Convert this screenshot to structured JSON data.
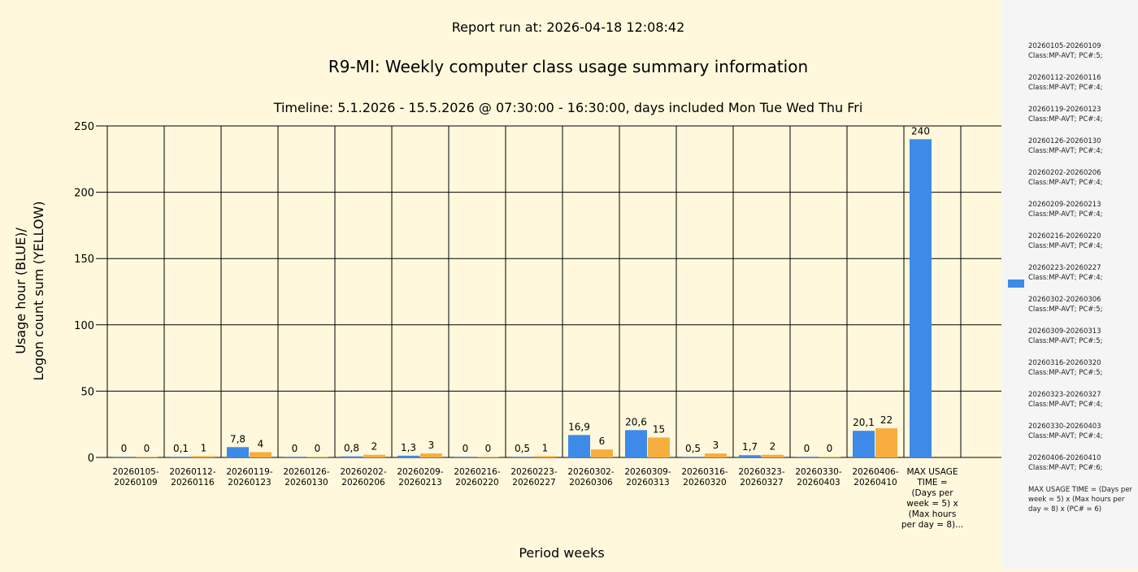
{
  "report_run": "Report run at: 2026-04-18 12:08:42",
  "colors": {
    "blue": "#3d8ae8",
    "yellow": "#f7ae3f",
    "background": "#fff8dc",
    "legend_bg": "#f5f5f5"
  },
  "chart_data": {
    "type": "bar",
    "title": "R9-MI: Weekly computer class usage summary information",
    "subtitle": "Timeline:  5.1.2026  - 15.5.2026  @  07:30:00 -  16:30:00, days included Mon Tue Wed Thu Fri",
    "xlabel": "Period weeks",
    "ylabel_line1": "Usage hour (BLUE)/",
    "ylabel_line2": "Logon count sum (YELLOW)",
    "ylim": [
      0,
      250
    ],
    "yticks": [
      0,
      50,
      100,
      150,
      200,
      250
    ],
    "grid": true,
    "categories": [
      [
        "20260105-",
        "20260109"
      ],
      [
        "20260112-",
        "20260116"
      ],
      [
        "20260119-",
        "20260123"
      ],
      [
        "20260126-",
        "20260130"
      ],
      [
        "20260202-",
        "20260206"
      ],
      [
        "20260209-",
        "20260213"
      ],
      [
        "20260216-",
        "20260220"
      ],
      [
        "20260223-",
        "20260227"
      ],
      [
        "20260302-",
        "20260306"
      ],
      [
        "20260309-",
        "20260313"
      ],
      [
        "20260316-",
        "20260320"
      ],
      [
        "20260323-",
        "20260327"
      ],
      [
        "20260330-",
        "20260403"
      ],
      [
        "20260406-",
        "20260410"
      ],
      [
        "MAX USAGE",
        "TIME =",
        "(Days per",
        "week = 5) x",
        "(Max hours",
        "per day = 8)..."
      ]
    ],
    "series": [
      {
        "color": "#3d8ae8",
        "values": [
          0,
          0.1,
          7.8,
          0,
          0.8,
          1.3,
          0,
          0.5,
          16.9,
          20.6,
          0.5,
          1.7,
          0,
          20.1,
          240
        ],
        "labels": [
          "0",
          "0,1",
          "7,8",
          "0",
          "0,8",
          "1,3",
          "0",
          "0,5",
          "16,9",
          "20,6",
          "0,5",
          "1,7",
          "0",
          "20,1",
          "240"
        ]
      },
      {
        "color": "#f7ae3f",
        "values": [
          0,
          1,
          4,
          0,
          2,
          3,
          0,
          1,
          6,
          15,
          3,
          2,
          0,
          22,
          null
        ],
        "labels": [
          "0",
          "1",
          "4",
          "0",
          "2",
          "3",
          "0",
          "1",
          "6",
          "15",
          "3",
          "2",
          "0",
          "22",
          ""
        ]
      }
    ]
  },
  "legend": {
    "entries": [
      {
        "period": "20260105-20260109",
        "info": "Class:MP-AVT; PC#:5;"
      },
      {
        "period": "20260112-20260116",
        "info": "Class:MP-AVT; PC#:4;"
      },
      {
        "period": "20260119-20260123",
        "info": "Class:MP-AVT; PC#:4;"
      },
      {
        "period": "20260126-20260130",
        "info": "Class:MP-AVT; PC#:4;"
      },
      {
        "period": "20260202-20260206",
        "info": "Class:MP-AVT; PC#:4;"
      },
      {
        "period": "20260209-20260213",
        "info": "Class:MP-AVT; PC#:4;"
      },
      {
        "period": "20260216-20260220",
        "info": "Class:MP-AVT; PC#:4;"
      },
      {
        "period": "20260223-20260227",
        "info": "Class:MP-AVT; PC#:4;"
      },
      {
        "period": "20260302-20260306",
        "info": "Class:MP-AVT; PC#:5;"
      },
      {
        "period": "20260309-20260313",
        "info": "Class:MP-AVT; PC#:5;"
      },
      {
        "period": "20260316-20260320",
        "info": "Class:MP-AVT; PC#:5;"
      },
      {
        "period": "20260323-20260327",
        "info": "Class:MP-AVT; PC#:4;"
      },
      {
        "period": "20260330-20260403",
        "info": "Class:MP-AVT; PC#:4;"
      },
      {
        "period": "20260406-20260410",
        "info": "Class:MP-AVT; PC#:6;"
      }
    ],
    "note": "MAX USAGE TIME = (Days per week = 5) x (Max hours per day = 8) x (PC# = 6)"
  }
}
